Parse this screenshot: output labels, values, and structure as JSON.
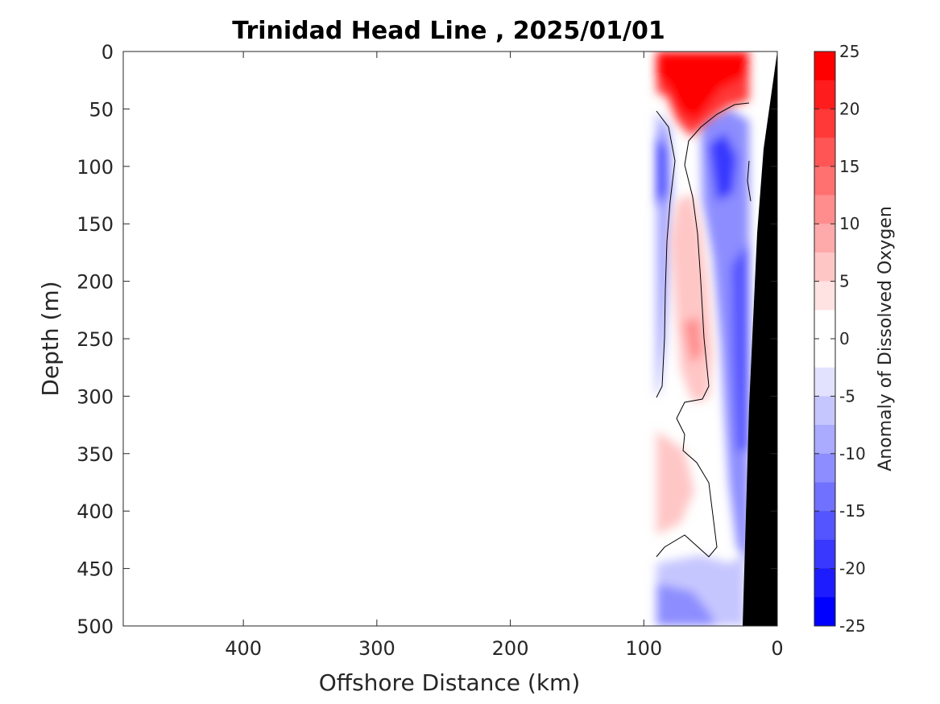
{
  "chart_data": {
    "type": "contour",
    "title": "Trinidad Head Line , 2025/01/01",
    "xlabel": "Offshore Distance (km)",
    "ylabel": "Depth (m)",
    "colorbar_label": "Anomaly of Dissolved Oxygen",
    "xlim": [
      490,
      0
    ],
    "ylim": [
      0,
      500
    ],
    "x_reversed": true,
    "y_reversed": true,
    "xticks": [
      400,
      300,
      200,
      100,
      0
    ],
    "yticks": [
      0,
      50,
      100,
      150,
      200,
      250,
      300,
      350,
      400,
      450,
      500
    ],
    "colorbar": {
      "range": [
        -25,
        25
      ],
      "ticks": [
        25,
        20,
        15,
        10,
        5,
        0,
        -5,
        -10,
        -15,
        -20,
        -25
      ],
      "levels": [
        {
          "from": 22.5,
          "to": 25,
          "color": "#ff0000"
        },
        {
          "from": 20,
          "to": 22.5,
          "color": "#ff1c1c"
        },
        {
          "from": 17.5,
          "to": 20,
          "color": "#ff3838"
        },
        {
          "from": 15,
          "to": 17.5,
          "color": "#ff5555"
        },
        {
          "from": 12.5,
          "to": 15,
          "color": "#ff7171"
        },
        {
          "from": 10,
          "to": 12.5,
          "color": "#ff8d8d"
        },
        {
          "from": 7.5,
          "to": 10,
          "color": "#ffaaaa"
        },
        {
          "from": 5,
          "to": 7.5,
          "color": "#ffc6c6"
        },
        {
          "from": 2.5,
          "to": 5,
          "color": "#ffe2e2"
        },
        {
          "from": -2.5,
          "to": 2.5,
          "color": "#ffffff"
        },
        {
          "from": -5,
          "to": -2.5,
          "color": "#e2e2ff"
        },
        {
          "from": -7.5,
          "to": -5,
          "color": "#c6c6ff"
        },
        {
          "from": -10,
          "to": -7.5,
          "color": "#aaaaff"
        },
        {
          "from": -12.5,
          "to": -10,
          "color": "#8d8dff"
        },
        {
          "from": -15,
          "to": -12.5,
          "color": "#7171ff"
        },
        {
          "from": -17.5,
          "to": -15,
          "color": "#5555ff"
        },
        {
          "from": -20,
          "to": -17.5,
          "color": "#3838ff"
        },
        {
          "from": -22.5,
          "to": -20,
          "color": "#1c1cff"
        },
        {
          "from": -25,
          "to": -22.5,
          "color": "#0000ff"
        }
      ]
    },
    "data_extent_km": [
      90,
      0
    ],
    "seafloor_color": "#000000",
    "features": [
      {
        "name": "surface high oxygen anomaly",
        "x": [
          90,
          20
        ],
        "y": [
          0,
          60
        ],
        "value": 25
      },
      {
        "name": "negative anomaly core",
        "x": 40,
        "y": 100,
        "value": -20
      },
      {
        "name": "negative anomaly core",
        "x": 88,
        "y": 110,
        "value": -20
      },
      {
        "name": "positive anomaly band",
        "x": [
          85,
          60
        ],
        "y": [
          130,
          330
        ],
        "value": 10
      },
      {
        "name": "positive anomaly pocket",
        "x": [
          90,
          75
        ],
        "y": [
          340,
          420
        ],
        "value": 7.5
      },
      {
        "name": "deep negative anomaly",
        "x": [
          90,
          30
        ],
        "y": [
          450,
          500
        ],
        "value": -15
      },
      {
        "name": "near-slope negative anomaly",
        "x": [
          40,
          25
        ],
        "y": [
          250,
          450
        ],
        "value": -20
      }
    ]
  }
}
